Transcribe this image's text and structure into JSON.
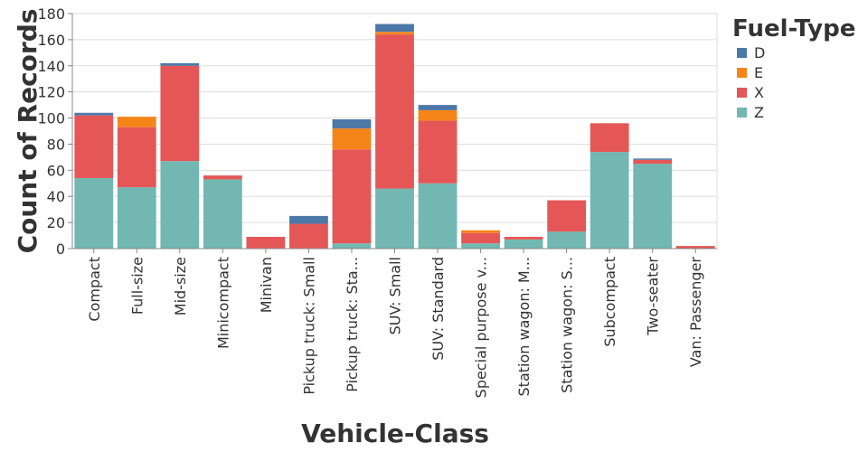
{
  "chart_data": {
    "type": "bar",
    "stacked": true,
    "title": "",
    "xlabel": "Vehicle-Class",
    "ylabel": "Count of Records",
    "ylim": [
      0,
      180
    ],
    "yticks": [
      0,
      20,
      40,
      60,
      80,
      100,
      120,
      140,
      160,
      180
    ],
    "grid": true,
    "categories": [
      "Compact",
      "Full-size",
      "Mid-size",
      "Minicompact",
      "Minivan",
      "Pickup truck: Small",
      "Pickup truck: Sta...",
      "SUV: Small",
      "SUV: Standard",
      "Special purpose v...",
      "Station wagon: M...",
      "Station wagon: S...",
      "Subcompact",
      "Two-seater",
      "Van: Passenger"
    ],
    "legend_title": "Fuel-Type",
    "legend_position": "right",
    "series": [
      {
        "name": "Z",
        "color": "#72b7b2",
        "values": [
          54,
          47,
          67,
          53,
          0,
          0,
          4,
          46,
          50,
          4,
          7,
          13,
          74,
          65,
          0
        ]
      },
      {
        "name": "X",
        "color": "#e45756",
        "values": [
          48,
          46,
          73,
          3,
          9,
          19,
          72,
          118,
          48,
          8,
          2,
          24,
          22,
          3,
          2
        ]
      },
      {
        "name": "E",
        "color": "#f58518",
        "values": [
          0,
          8,
          0,
          0,
          0,
          0,
          16,
          2,
          8,
          2,
          0,
          0,
          0,
          0,
          0
        ]
      },
      {
        "name": "D",
        "color": "#4c78a8",
        "values": [
          2,
          0,
          2,
          0,
          0,
          6,
          7,
          6,
          4,
          0,
          0,
          0,
          0,
          1,
          0
        ]
      }
    ],
    "legend_order": [
      "D",
      "E",
      "X",
      "Z"
    ]
  }
}
